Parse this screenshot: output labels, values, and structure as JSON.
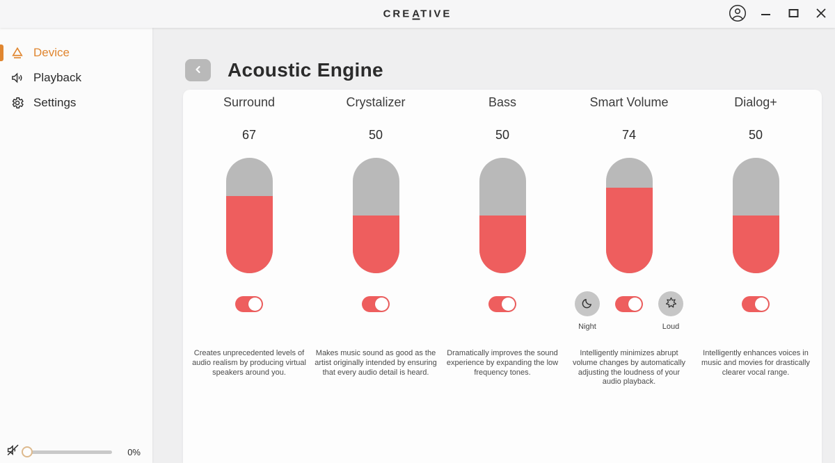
{
  "titlebar": {
    "logo_pre": "CRE",
    "logo_a": "A",
    "logo_post": "TIVE"
  },
  "sidebar": {
    "items": [
      {
        "label": "Device"
      },
      {
        "label": "Playback"
      },
      {
        "label": "Settings"
      }
    ],
    "active_item": "Device",
    "volume": {
      "value": 0,
      "percent_label": "0%"
    }
  },
  "main": {
    "title": "Acoustic Engine"
  },
  "effects": [
    {
      "name": "Surround",
      "value": 67,
      "enabled": true,
      "description": "Creates unprecedented levels of audio realism by producing virtual speakers around you."
    },
    {
      "name": "Crystalizer",
      "value": 50,
      "enabled": true,
      "description": "Makes music sound as good as the artist originally intended by ensuring that every audio detail is heard."
    },
    {
      "name": "Bass",
      "value": 50,
      "enabled": true,
      "description": "Dramatically improves the sound experience by expanding the low frequency tones."
    },
    {
      "name": "Smart Volume",
      "value": 74,
      "enabled": true,
      "mode_left": "Night",
      "mode_right": "Loud",
      "description": "Intelligently minimizes abrupt volume changes by automatically adjusting the loudness of your audio playback."
    },
    {
      "name": "Dialog+",
      "value": 50,
      "enabled": true,
      "description": "Intelligently enhances voices in music and movies for drastically clearer vocal range."
    }
  ],
  "colors": {
    "accent_orange": "#e08630",
    "slider_red": "#ee5e5e",
    "slider_gray": "#b9b9b9",
    "mode_button_gray": "#c6c6c6"
  }
}
